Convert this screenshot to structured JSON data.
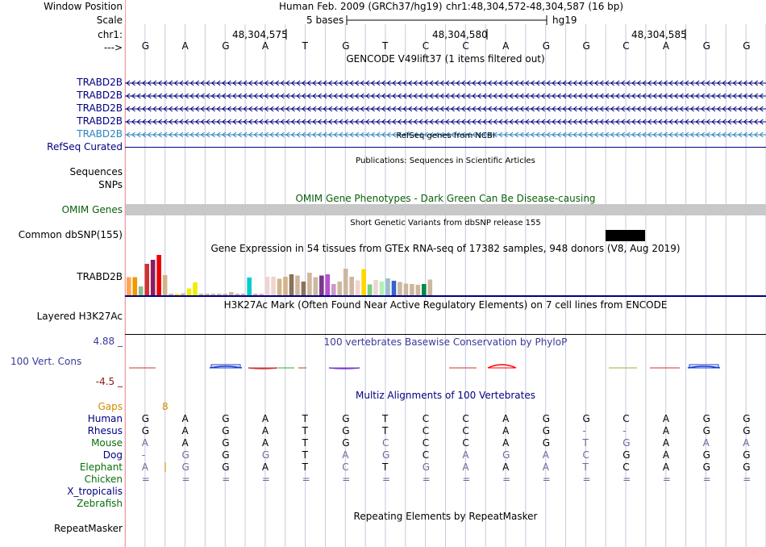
{
  "header": {
    "window_position_label": "Window Position",
    "scale_label": "Scale",
    "chr_label": "chr1:",
    "arrow_label": "--->",
    "assembly": "Human Feb. 2009 (GRCh37/hg19)",
    "position": "chr1:48,304,572-48,304,587 (16 bp)",
    "scale_text": "5 bases",
    "build": "hg19",
    "ticks": [
      "48,304,575",
      "48,304,580",
      "48,304,585"
    ]
  },
  "sequence": [
    "G",
    "A",
    "G",
    "A",
    "T",
    "G",
    "T",
    "C",
    "C",
    "A",
    "G",
    "G",
    "C",
    "A",
    "G",
    "G"
  ],
  "gencode": {
    "title": "GENCODE V49lift37 (1 items filtered out)",
    "tracks": [
      {
        "label": "TRABD2B",
        "color": "#000080"
      },
      {
        "label": "TRABD2B",
        "color": "#000080"
      },
      {
        "label": "TRABD2B",
        "color": "#000080"
      },
      {
        "label": "TRABD2B",
        "color": "#000080"
      },
      {
        "label": "TRABD2B",
        "color": "#2a84c0"
      }
    ]
  },
  "refseq": {
    "title": "RefSeq genes from NCBI",
    "label": "RefSeq Curated"
  },
  "publications": {
    "title": "Publications: Sequences in Scientific Articles",
    "label": "Sequences"
  },
  "snps": {
    "label": "SNPs"
  },
  "omim": {
    "title": "OMIM Gene Phenotypes - Dark Green Can Be Disease-causing",
    "label": "OMIM Genes",
    "color": "#0a5f0a"
  },
  "dbsnp": {
    "title": "Short Genetic Variants from dbSNP release 155",
    "label": "Common dbSNP(155)"
  },
  "gtex": {
    "title": "Gene Expression in 54 tissues from GTEx RNA-seq of 17382 samples, 948 donors (V8, Aug 2019)",
    "label": "TRABD2B",
    "bars": [
      {
        "v": 0.45,
        "c": "#ffa54f"
      },
      {
        "v": 0.45,
        "c": "#ee9a00"
      },
      {
        "v": 0.22,
        "c": "#8fbc8f"
      },
      {
        "v": 0.78,
        "c": "#cd3333"
      },
      {
        "v": 0.88,
        "c": "#8b1c62"
      },
      {
        "v": 1.0,
        "c": "#ee0000"
      },
      {
        "v": 0.5,
        "c": "#d2b48c"
      },
      {
        "v": 0.03,
        "c": "#cdb79e"
      },
      {
        "v": 0.03,
        "c": "#eeee00"
      },
      {
        "v": 0.05,
        "c": "#cdb79e"
      },
      {
        "v": 0.17,
        "c": "#eeee00"
      },
      {
        "v": 0.32,
        "c": "#eeee00"
      },
      {
        "v": 0.04,
        "c": "#cdb79e"
      },
      {
        "v": 0.03,
        "c": "#cdb79e"
      },
      {
        "v": 0.03,
        "c": "#cdb79e"
      },
      {
        "v": 0.03,
        "c": "#cdb79e"
      },
      {
        "v": 0.04,
        "c": "#cdb79e"
      },
      {
        "v": 0.08,
        "c": "#cdb79e"
      },
      {
        "v": 0.02,
        "c": "#cdb79e"
      },
      {
        "v": 0.02,
        "c": "#cdb79e"
      },
      {
        "v": 0.44,
        "c": "#00cdcd"
      },
      {
        "v": 0.04,
        "c": "#cdb79e"
      },
      {
        "v": 0.02,
        "c": "#eeb4b4"
      },
      {
        "v": 0.46,
        "c": "#eed5d2"
      },
      {
        "v": 0.46,
        "c": "#eed5d2"
      },
      {
        "v": 0.41,
        "c": "#d2b48c"
      },
      {
        "v": 0.46,
        "c": "#d2b48c"
      },
      {
        "v": 0.52,
        "c": "#8b7355"
      },
      {
        "v": 0.49,
        "c": "#cdb79e"
      },
      {
        "v": 0.34,
        "c": "#8b7355"
      },
      {
        "v": 0.56,
        "c": "#cdb79e"
      },
      {
        "v": 0.45,
        "c": "#cdb79e"
      },
      {
        "v": 0.49,
        "c": "#7a378b"
      },
      {
        "v": 0.52,
        "c": "#b452cd"
      },
      {
        "v": 0.28,
        "c": "#cd96cd"
      },
      {
        "v": 0.34,
        "c": "#cdb79e"
      },
      {
        "v": 0.66,
        "c": "#cdb79e"
      },
      {
        "v": 0.46,
        "c": "#cdb79e"
      },
      {
        "v": 0.37,
        "c": "#eed5d2"
      },
      {
        "v": 0.65,
        "c": "#ffd700"
      },
      {
        "v": 0.27,
        "c": "#7ccd7c"
      },
      {
        "v": 0.38,
        "c": "#eed5d2"
      },
      {
        "v": 0.34,
        "c": "#b4eeb4"
      },
      {
        "v": 0.42,
        "c": "#9ac0cd"
      },
      {
        "v": 0.36,
        "c": "#3a5fcd"
      },
      {
        "v": 0.33,
        "c": "#cdb79e"
      },
      {
        "v": 0.29,
        "c": "#cdb79e"
      },
      {
        "v": 0.28,
        "c": "#cdb79e"
      },
      {
        "v": 0.26,
        "c": "#cdb79e"
      },
      {
        "v": 0.28,
        "c": "#008b45"
      },
      {
        "v": 0.39,
        "c": "#cdb79e"
      }
    ]
  },
  "h3k27ac": {
    "title": "H3K27Ac Mark (Often Found Near Active Regulatory Elements) on 7 cell lines from ENCODE",
    "label": "Layered H3K27Ac"
  },
  "phylop": {
    "title": "100 vertebrates Basewise Conservation by PhyloP",
    "label": "100 Vert. Cons",
    "max": "4.88 _",
    "min": "-4.5 _",
    "title_color": "#3a3a9b",
    "min_color": "#8b1a1a"
  },
  "multiz": {
    "title": "Multiz Alignments of 100 Vertebrates",
    "gaps_label": "Gaps",
    "gaps_value": "8",
    "gaps_color": "#d18b00",
    "species": [
      {
        "name": "Human",
        "color": "#000080",
        "bases": [
          "G",
          "A",
          "G",
          "A",
          "T",
          "G",
          "T",
          "C",
          "C",
          "A",
          "G",
          "G",
          "C",
          "A",
          "G",
          "G"
        ],
        "dim": []
      },
      {
        "name": "Rhesus",
        "color": "#000080",
        "bases": [
          "G",
          "A",
          "G",
          "A",
          "T",
          "G",
          "T",
          "C",
          "C",
          "A",
          "G",
          "-",
          "-",
          "A",
          "G",
          "G"
        ],
        "dim": [
          11,
          12
        ]
      },
      {
        "name": "Mouse",
        "color": "#0a6e0a",
        "bases": [
          "A",
          "A",
          "G",
          "A",
          "T",
          "G",
          "C",
          "C",
          "C",
          "A",
          "G",
          "T",
          "G",
          "A",
          "A",
          "A"
        ],
        "dim": [
          0,
          6,
          11,
          12,
          14,
          15
        ]
      },
      {
        "name": "Dog",
        "color": "#000080",
        "bases": [
          "-",
          "G",
          "G",
          "G",
          "T",
          "A",
          "G",
          "C",
          "A",
          "G",
          "A",
          "C",
          "G",
          "A",
          "G",
          "G"
        ],
        "dim": [
          0,
          1,
          3,
          5,
          6,
          8,
          9,
          10,
          11
        ]
      },
      {
        "name": "Elephant",
        "color": "#0a6e0a",
        "bases": [
          "A",
          "G",
          "G",
          "A",
          "T",
          "C",
          "T",
          "G",
          "A",
          "A",
          "A",
          "T",
          "C",
          "A",
          "G",
          "G"
        ],
        "dim": [
          0,
          1,
          5,
          7,
          8,
          10,
          11
        ]
      },
      {
        "name": "Chicken",
        "color": "#0a6e0a",
        "bases": [
          "=",
          "=",
          "=",
          "=",
          "=",
          "=",
          "=",
          "=",
          "=",
          "=",
          "=",
          "=",
          "=",
          "=",
          "=",
          "="
        ],
        "dim": "all"
      },
      {
        "name": "X_tropicalis",
        "color": "#000080",
        "bases": [],
        "dim": []
      },
      {
        "name": "Zebrafish",
        "color": "#0a6e0a",
        "bases": [],
        "dim": []
      }
    ]
  },
  "repeatmasker": {
    "title": "Repeating Elements by RepeatMasker",
    "label": "RepeatMasker"
  },
  "colors": {
    "grid": "#c8c8dc",
    "red_line": "#ff9999",
    "dim_base": "#6a6a9a",
    "gene_navy": "#000080",
    "omim_gray": "#c8c8c8"
  }
}
